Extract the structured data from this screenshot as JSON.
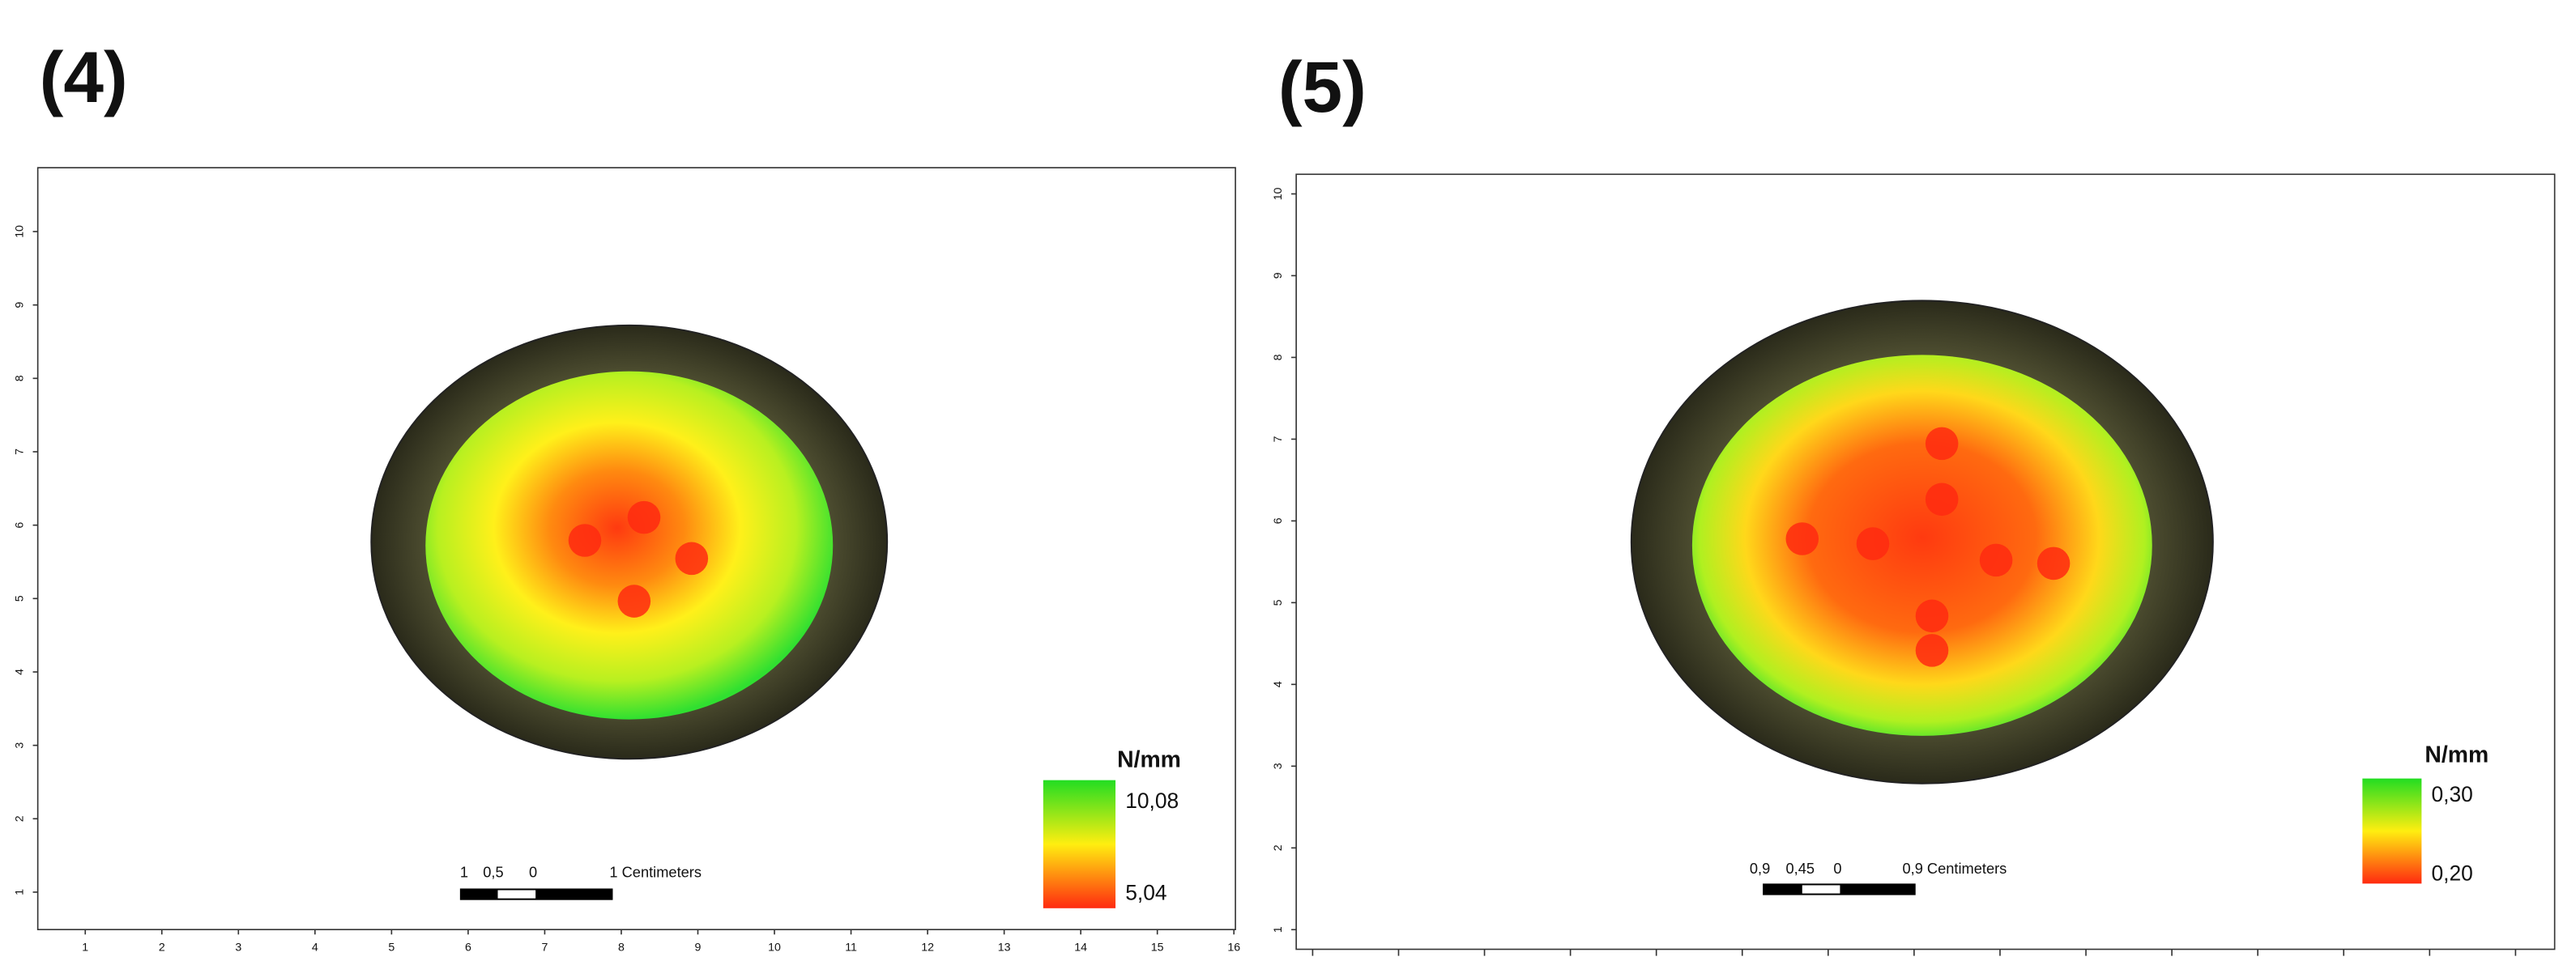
{
  "chart_data": [
    {
      "type": "heatmap",
      "title": "(4)",
      "xlim": [
        0.38,
        16.02
      ],
      "xticks": [
        1,
        2,
        3,
        4,
        5,
        6,
        7,
        8,
        9,
        10,
        11,
        12,
        13,
        14,
        15,
        16
      ],
      "ylim": [
        0.49,
        10.87
      ],
      "yticks": [
        1,
        2,
        3,
        4,
        5,
        6,
        7,
        8,
        9,
        10
      ],
      "colorbar_title": "N/mm",
      "cticks": [
        {
          "value": 10.08,
          "label": "10,08"
        },
        {
          "value": 5.04,
          "label": "5,04"
        }
      ],
      "scale_bar": [
        "1",
        "0,5",
        "0",
        "1 Centimeters"
      ]
    },
    {
      "type": "heatmap",
      "title": "(5)",
      "ylim": [
        0.76,
        10.24
      ],
      "yticks": [
        1,
        2,
        3,
        4,
        5,
        6,
        7,
        8,
        9,
        10
      ],
      "colorbar_title": "N/mm",
      "cticks": [
        {
          "value": 0.3,
          "label": "0,30"
        },
        {
          "value": 0.2,
          "label": "0,20"
        }
      ],
      "scale_bar": [
        "0,9",
        "0,45",
        "0",
        "0,9 Centimeters"
      ]
    }
  ]
}
